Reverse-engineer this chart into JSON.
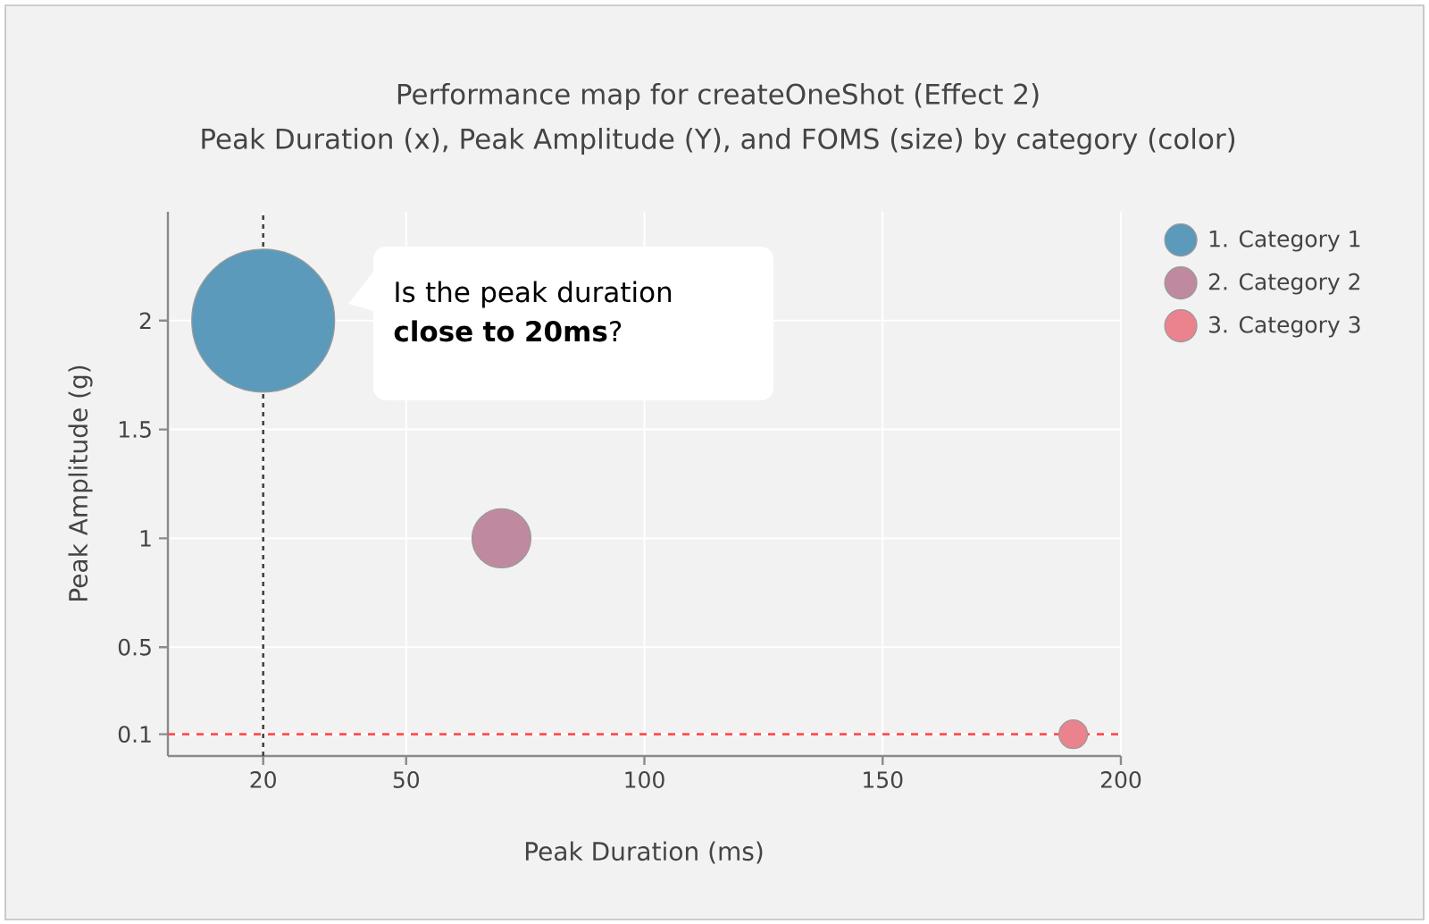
{
  "chart_data": {
    "type": "bubble",
    "title": "Performance map for createOneShot (Effect 2)",
    "subtitle": "Peak Duration (x), Peak Amplitude (Y), and FOMS (size) by category (color)",
    "xlabel": "Peak Duration (ms)",
    "ylabel": "Peak Amplitude (g)",
    "series": [
      {
        "name": "1. Category 1",
        "color": "#5b9abb",
        "x": [
          20
        ],
        "values": [
          2
        ],
        "sizes": [
          1
        ]
      },
      {
        "name": "2. Category 2",
        "color": "#bf8aa0",
        "x": [
          70
        ],
        "values": [
          1
        ],
        "sizes": [
          0.17
        ]
      },
      {
        "name": "3. Category 3",
        "color": "#ea838d",
        "x": [
          190
        ],
        "values": [
          0.1
        ],
        "sizes": [
          0.04
        ]
      }
    ],
    "xlim": [
      0,
      200
    ],
    "ylim": [
      0,
      2.5
    ],
    "xticks": [
      20,
      50,
      100,
      150,
      200
    ],
    "yticks": [
      0.1,
      0.5,
      1,
      1.5,
      2
    ],
    "grid": true,
    "legend": "top right",
    "marker": "circle",
    "ref_lines": [
      {
        "axis": "y",
        "value": 0.1,
        "color": "#ff4d4d",
        "line_style": "dashed"
      },
      {
        "axis": "x",
        "value": 20,
        "color": "#444444",
        "line_style": "dotted"
      }
    ],
    "annotations": [
      "Is the peak duration **close to 20ms**?"
    ]
  }
}
